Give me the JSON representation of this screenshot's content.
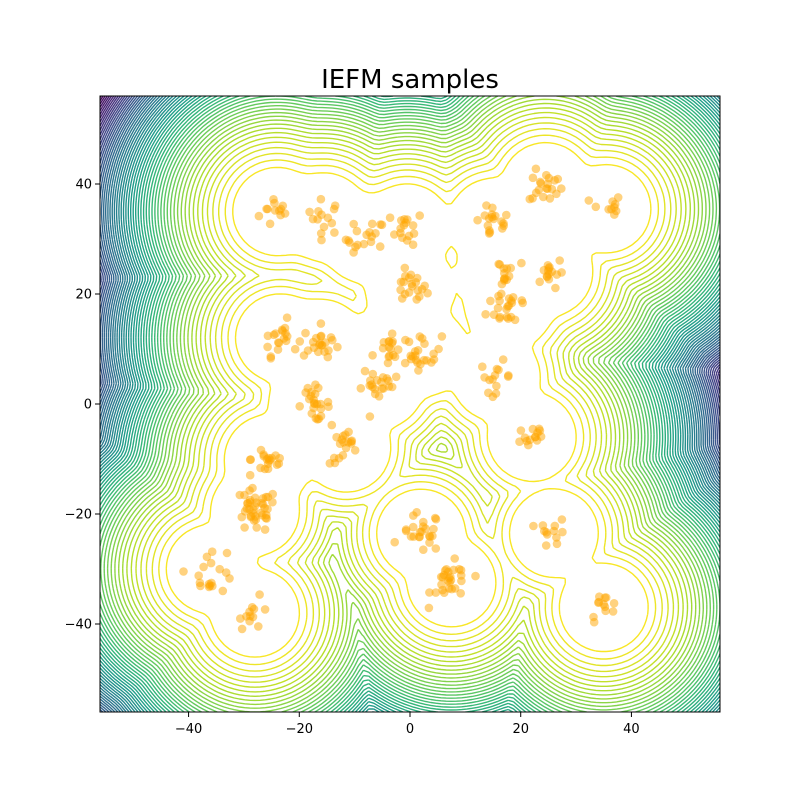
{
  "chart_data": {
    "type": "scatter",
    "title": "IEFM samples",
    "xlabel": "",
    "ylabel": "",
    "xlim": [
      -56,
      56
    ],
    "ylim": [
      -56,
      56
    ],
    "x_ticks": [
      -40,
      -20,
      0,
      20,
      40
    ],
    "y_ticks": [
      -40,
      -20,
      0,
      20,
      40
    ],
    "x_tick_labels": [
      "−40",
      "−20",
      "0",
      "20",
      "40"
    ],
    "y_tick_labels": [
      "−40",
      "−20",
      "0",
      "20",
      "40"
    ],
    "grid": false,
    "legend": "none",
    "background": "contour",
    "contour_colormap": "viridis",
    "point_color": "#ffa500",
    "point_alpha": 0.5,
    "clusters": [
      {
        "center": [
          -24,
          35
        ],
        "spread": 1.6,
        "count": 12
      },
      {
        "center": [
          -15.5,
          34
        ],
        "spread": 1.6,
        "count": 14
      },
      {
        "center": [
          -8,
          30
        ],
        "spread": 1.8,
        "count": 18
      },
      {
        "center": [
          -0.5,
          32
        ],
        "spread": 1.5,
        "count": 16
      },
      {
        "center": [
          0,
          21
        ],
        "spread": 1.5,
        "count": 20
      },
      {
        "center": [
          15,
          33
        ],
        "spread": 1.6,
        "count": 18
      },
      {
        "center": [
          24.5,
          39.5
        ],
        "spread": 1.5,
        "count": 20
      },
      {
        "center": [
          35.5,
          35.5
        ],
        "spread": 1.4,
        "count": 10
      },
      {
        "center": [
          16.5,
          24
        ],
        "spread": 1.3,
        "count": 12
      },
      {
        "center": [
          18,
          18
        ],
        "spread": 2.0,
        "count": 22
      },
      {
        "center": [
          25,
          24
        ],
        "spread": 1.4,
        "count": 16
      },
      {
        "center": [
          -23.5,
          12
        ],
        "spread": 1.6,
        "count": 20
      },
      {
        "center": [
          -16,
          11
        ],
        "spread": 1.6,
        "count": 20
      },
      {
        "center": [
          -3.5,
          10
        ],
        "spread": 1.6,
        "count": 18
      },
      {
        "center": [
          2.5,
          9.5
        ],
        "spread": 1.6,
        "count": 20
      },
      {
        "center": [
          -5.5,
          3.5
        ],
        "spread": 1.7,
        "count": 22
      },
      {
        "center": [
          15.5,
          5
        ],
        "spread": 1.4,
        "count": 14
      },
      {
        "center": [
          -17.5,
          0
        ],
        "spread": 1.5,
        "count": 24
      },
      {
        "center": [
          -11.5,
          -8
        ],
        "spread": 1.5,
        "count": 18
      },
      {
        "center": [
          22,
          -6
        ],
        "spread": 1.4,
        "count": 14
      },
      {
        "center": [
          -25.5,
          -10
        ],
        "spread": 1.6,
        "count": 18
      },
      {
        "center": [
          -28,
          -19.5
        ],
        "spread": 2.0,
        "count": 40
      },
      {
        "center": [
          2,
          -23.5
        ],
        "spread": 1.8,
        "count": 24
      },
      {
        "center": [
          7.5,
          -32.5
        ],
        "spread": 1.8,
        "count": 28
      },
      {
        "center": [
          26,
          -23.5
        ],
        "spread": 1.3,
        "count": 12
      },
      {
        "center": [
          -36,
          -30
        ],
        "spread": 2.2,
        "count": 18
      },
      {
        "center": [
          -28,
          -38
        ],
        "spread": 1.4,
        "count": 12
      },
      {
        "center": [
          35,
          -37
        ],
        "spread": 1.3,
        "count": 12
      }
    ]
  }
}
